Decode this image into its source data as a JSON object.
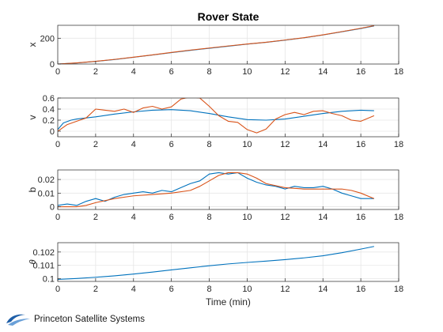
{
  "window": {
    "title": "Rover State",
    "footer_logo_text": "Princeton Satellite Systems"
  },
  "colors": {
    "series_1": "#0072BD",
    "series_2": "#D95319",
    "axes": "#262626",
    "grid": "#e6e6e6"
  },
  "chart_data": [
    {
      "type": "line",
      "title": "Rover State",
      "xlabel": "",
      "ylabel": "x",
      "xlim": [
        0,
        18
      ],
      "ylim": [
        0,
        300
      ],
      "xticks": [
        0,
        2,
        4,
        6,
        8,
        10,
        12,
        14,
        16,
        18
      ],
      "yticks": [
        0,
        200
      ],
      "grid": true,
      "series": [
        {
          "color": "#0072BD",
          "x": [
            0,
            1,
            2,
            3,
            4,
            5,
            6,
            7,
            8,
            9,
            10,
            11,
            12,
            13,
            14,
            15,
            16,
            16.7
          ],
          "y": [
            0,
            8,
            20,
            35,
            52,
            70,
            88,
            106,
            122,
            138,
            154,
            168,
            185,
            203,
            225,
            250,
            275,
            295
          ]
        },
        {
          "color": "#D95319",
          "x": [
            0,
            1,
            2,
            3,
            4,
            5,
            6,
            7,
            8,
            9,
            10,
            11,
            12,
            13,
            14,
            15,
            16,
            16.7
          ],
          "y": [
            0,
            9,
            21,
            36,
            53,
            71,
            90,
            108,
            124,
            140,
            155,
            169,
            186,
            204,
            226,
            251,
            277,
            297
          ]
        }
      ]
    },
    {
      "type": "line",
      "title": "",
      "xlabel": "",
      "ylabel": "v",
      "xlim": [
        0,
        18
      ],
      "ylim": [
        -0.1,
        0.6
      ],
      "xticks": [
        0,
        2,
        4,
        6,
        8,
        10,
        12,
        14,
        16,
        18
      ],
      "yticks": [
        0,
        0.2,
        0.4,
        0.6
      ],
      "grid": true,
      "series": [
        {
          "color": "#0072BD",
          "x": [
            0,
            0.3,
            0.7,
            1,
            2,
            3,
            4,
            5,
            6,
            7,
            8,
            9,
            10,
            11,
            12,
            13,
            14,
            15,
            16,
            16.7
          ],
          "y": [
            0.03,
            0.15,
            0.2,
            0.22,
            0.26,
            0.31,
            0.35,
            0.38,
            0.39,
            0.37,
            0.32,
            0.26,
            0.21,
            0.2,
            0.22,
            0.27,
            0.32,
            0.36,
            0.38,
            0.37
          ]
        },
        {
          "color": "#D95319",
          "x": [
            0,
            0.5,
            1,
            1.5,
            2,
            2.5,
            3,
            3.5,
            4,
            4.5,
            5,
            5.5,
            6,
            6.5,
            7,
            7.5,
            8,
            8.5,
            9,
            9.5,
            10,
            10.5,
            11,
            11.5,
            12,
            12.5,
            13,
            13.5,
            14,
            14.5,
            15,
            15.5,
            16,
            16.7
          ],
          "y": [
            0.0,
            0.12,
            0.18,
            0.24,
            0.4,
            0.38,
            0.36,
            0.4,
            0.34,
            0.42,
            0.45,
            0.4,
            0.44,
            0.58,
            0.62,
            0.6,
            0.45,
            0.28,
            0.18,
            0.16,
            0.03,
            -0.03,
            0.04,
            0.22,
            0.3,
            0.34,
            0.3,
            0.36,
            0.37,
            0.32,
            0.28,
            0.2,
            0.18,
            0.28
          ]
        }
      ]
    },
    {
      "type": "line",
      "title": "",
      "xlabel": "",
      "ylabel": "b",
      "xlim": [
        0,
        18
      ],
      "ylim": [
        -0.002,
        0.027
      ],
      "xticks": [
        0,
        2,
        4,
        6,
        8,
        10,
        12,
        14,
        16,
        18
      ],
      "yticks": [
        0,
        0.01,
        0.02
      ],
      "grid": true,
      "series": [
        {
          "color": "#0072BD",
          "x": [
            0,
            0.5,
            1,
            1.5,
            2,
            2.5,
            3,
            3.5,
            4,
            4.5,
            5,
            5.5,
            6,
            6.5,
            7,
            7.5,
            8,
            8.5,
            9,
            9.5,
            10,
            10.5,
            11,
            11.5,
            12,
            12.5,
            13,
            13.5,
            14,
            14.5,
            15,
            15.5,
            16,
            16.7
          ],
          "y": [
            0.001,
            0.002,
            0.001,
            0.004,
            0.006,
            0.004,
            0.007,
            0.009,
            0.01,
            0.011,
            0.01,
            0.012,
            0.011,
            0.014,
            0.017,
            0.019,
            0.024,
            0.025,
            0.024,
            0.025,
            0.021,
            0.018,
            0.016,
            0.015,
            0.013,
            0.015,
            0.014,
            0.014,
            0.015,
            0.013,
            0.01,
            0.008,
            0.006,
            0.006
          ]
        },
        {
          "color": "#D95319",
          "x": [
            0,
            0.5,
            1,
            1.5,
            2,
            3,
            4,
            5,
            6,
            7,
            7.5,
            8,
            8.5,
            9,
            9.5,
            10,
            10.5,
            11,
            12,
            13,
            14,
            14.5,
            15,
            15.5,
            16,
            16.7
          ],
          "y": [
            0.0,
            0.0,
            0.0,
            0.001,
            0.003,
            0.006,
            0.008,
            0.009,
            0.01,
            0.012,
            0.015,
            0.019,
            0.023,
            0.025,
            0.025,
            0.024,
            0.021,
            0.017,
            0.014,
            0.013,
            0.013,
            0.013,
            0.013,
            0.012,
            0.01,
            0.006
          ]
        }
      ]
    },
    {
      "type": "line",
      "title": "",
      "xlabel": "Time (min)",
      "ylabel": "θ",
      "xlim": [
        0,
        18
      ],
      "ylim": [
        0.0998,
        0.1027
      ],
      "xticks": [
        0,
        2,
        4,
        6,
        8,
        10,
        12,
        14,
        16,
        18
      ],
      "yticks": [
        0.1,
        0.101,
        0.102
      ],
      "grid": true,
      "series": [
        {
          "color": "#0072BD",
          "x": [
            0,
            1,
            2,
            3,
            4,
            5,
            6,
            7,
            8,
            9,
            10,
            11,
            12,
            13,
            14,
            15,
            16,
            16.7
          ],
          "y": [
            0.09995,
            0.10002,
            0.10011,
            0.10022,
            0.10035,
            0.1005,
            0.10066,
            0.10082,
            0.10097,
            0.10111,
            0.10122,
            0.10132,
            0.10143,
            0.10156,
            0.10172,
            0.10195,
            0.10222,
            0.10242
          ]
        }
      ]
    }
  ]
}
